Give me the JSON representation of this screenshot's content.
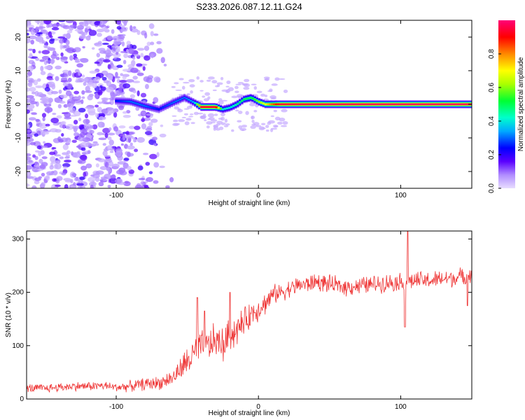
{
  "figure": {
    "title": "S233.2026.087.12.11.G24"
  },
  "chart_data": [
    {
      "type": "heatmap",
      "panel": "top",
      "title": "S233.2026.087.12.11.G24",
      "xlabel": "Height of straight line (km)",
      "ylabel": "Frequency (Hz)",
      "xlim": [
        -163,
        150
      ],
      "ylim": [
        -25,
        25
      ],
      "xticks": [
        -100,
        0,
        100
      ],
      "xtick_labels": [
        "-100",
        "0",
        "100"
      ],
      "yticks": [
        -20,
        -10,
        0,
        10,
        20
      ],
      "ytick_labels": [
        "-20",
        "-10",
        "0",
        "10",
        "20"
      ],
      "colorbar": {
        "label": "Normalized spectral amplitude",
        "range": [
          0,
          1
        ],
        "ticks": [
          0.0,
          0.2,
          0.4,
          0.6,
          0.8
        ],
        "tick_labels": [
          "0.0",
          "0.2",
          "0.4",
          "0.6",
          "0.8"
        ],
        "colors": [
          "#b08cff",
          "#5a00ff",
          "#0000ff",
          "#00ccff",
          "#00ff44",
          "#aaff00",
          "#ffff00",
          "#ff8800",
          "#ff0000",
          "#ff0066"
        ]
      },
      "noise_region_x": [
        -163,
        -60
      ],
      "ridge": [
        {
          "x": -100,
          "y": 1.0,
          "amp": 0.25
        },
        {
          "x": -90,
          "y": 0.8,
          "amp": 0.3
        },
        {
          "x": -80,
          "y": -0.5,
          "amp": 0.3
        },
        {
          "x": -70,
          "y": -1.5,
          "amp": 0.25
        },
        {
          "x": -60,
          "y": 0.5,
          "amp": 0.3
        },
        {
          "x": -52,
          "y": 2.0,
          "amp": 0.3
        },
        {
          "x": -45,
          "y": 0.5,
          "amp": 0.35
        },
        {
          "x": -40,
          "y": -0.8,
          "amp": 0.95
        },
        {
          "x": -30,
          "y": -0.8,
          "amp": 0.95
        },
        {
          "x": -25,
          "y": -1.5,
          "amp": 0.4
        },
        {
          "x": -20,
          "y": -1.0,
          "amp": 0.4
        },
        {
          "x": -15,
          "y": 0.0,
          "amp": 0.45
        },
        {
          "x": -10,
          "y": 1.5,
          "amp": 0.5
        },
        {
          "x": -5,
          "y": 2.0,
          "amp": 0.5
        },
        {
          "x": 0,
          "y": 0.8,
          "amp": 0.6
        },
        {
          "x": 5,
          "y": 0.0,
          "amp": 0.7
        },
        {
          "x": 15,
          "y": 0.0,
          "amp": 0.95
        },
        {
          "x": 50,
          "y": 0.0,
          "amp": 0.97
        },
        {
          "x": 100,
          "y": 0.0,
          "amp": 0.98
        },
        {
          "x": 150,
          "y": 0.0,
          "amp": 0.98
        }
      ]
    },
    {
      "type": "line",
      "panel": "bottom",
      "xlabel": "Height of straight line (km)",
      "ylabel": "SNR (10 * v/v)",
      "xlim": [
        -163,
        150
      ],
      "ylim": [
        0,
        315
      ],
      "xticks": [
        -100,
        0,
        100
      ],
      "xtick_labels": [
        "-100",
        "0",
        "100"
      ],
      "yticks": [
        0,
        100,
        200,
        300
      ],
      "ytick_labels": [
        "0",
        "100",
        "200",
        "300"
      ],
      "line_color": "#ee3333",
      "x": [
        -163,
        -150,
        -140,
        -130,
        -120,
        -110,
        -100,
        -90,
        -80,
        -70,
        -60,
        -55,
        -50,
        -45,
        -40,
        -35,
        -30,
        -25,
        -20,
        -15,
        -10,
        -5,
        0,
        5,
        10,
        15,
        20,
        25,
        30,
        35,
        40,
        50,
        60,
        70,
        80,
        90,
        100,
        110,
        120,
        130,
        140,
        150
      ],
      "y": [
        20,
        20,
        22,
        24,
        24,
        25,
        22,
        24,
        28,
        30,
        40,
        55,
        70,
        85,
        95,
        100,
        110,
        100,
        120,
        130,
        145,
        160,
        170,
        180,
        195,
        200,
        205,
        210,
        215,
        215,
        220,
        215,
        210,
        212,
        215,
        218,
        220,
        222,
        222,
        225,
        228,
        232
      ],
      "noise_amplitude": [
        10,
        10,
        10,
        10,
        10,
        10,
        10,
        12,
        14,
        15,
        18,
        25,
        35,
        40,
        40,
        40,
        40,
        40,
        40,
        35,
        30,
        30,
        28,
        25,
        22,
        20,
        20,
        20,
        20,
        20,
        20,
        20,
        20,
        20,
        20,
        20,
        20,
        20,
        20,
        20,
        20,
        20
      ],
      "spikes": [
        {
          "x": -43,
          "y": 190
        },
        {
          "x": -38,
          "y": 165
        },
        {
          "x": -20,
          "y": 200
        },
        {
          "x": 103,
          "y": 135
        },
        {
          "x": 105,
          "y": 315
        },
        {
          "x": 147,
          "y": 175
        }
      ]
    }
  ]
}
